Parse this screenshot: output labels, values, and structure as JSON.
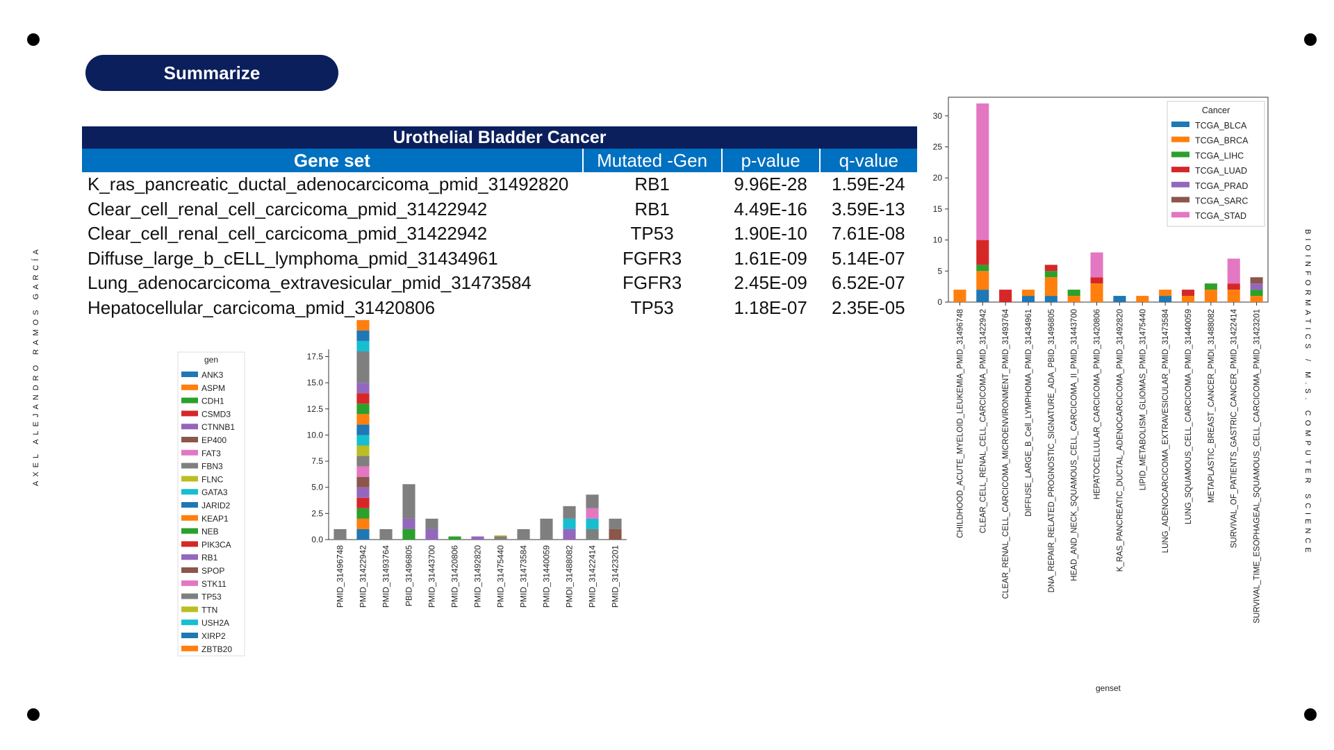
{
  "header": {
    "title": "Summarize"
  },
  "side": {
    "left": "AXEL ALEJANDRO RAMOS GARCÍA",
    "right": "BIOINFORMATICS / M.S. COMPUTER SCIENCE"
  },
  "table": {
    "title": "Urothelial Bladder Cancer",
    "columns": [
      "Gene set",
      "Mutated -Gen",
      "p-value",
      "q-value"
    ],
    "rows": [
      [
        "K_ras_pancreatic_ductal_adenocarcicoma_pmid_31492820",
        "RB1",
        "9.96E-28",
        "1.59E-24"
      ],
      [
        "Clear_cell_renal_cell_carcicoma_pmid_31422942",
        "RB1",
        "4.49E-16",
        "3.59E-13"
      ],
      [
        "Clear_cell_renal_cell_carcicoma_pmid_31422942",
        "TP53",
        "1.90E-10",
        "7.61E-08"
      ],
      [
        "Diffuse_large_b_cELL_lymphoma_pmid_31434961",
        "FGFR3",
        "1.61E-09",
        "5.14E-07"
      ],
      [
        "Lung_adenocarcicoma_extravesicular_pmid_31473584",
        "FGFR3",
        "2.45E-09",
        "6.52E-07"
      ],
      [
        "Hepatocellular_carcicoma_pmid_31420806",
        "TP53",
        "1.18E-07",
        "2.35E-05"
      ]
    ]
  },
  "chart_data": [
    {
      "type": "bar",
      "stacked": true,
      "legend_title": "gen",
      "legend": [
        "ANK3",
        "ASPM",
        "CDH1",
        "CSMD3",
        "CTNNB1",
        "EP400",
        "FAT3",
        "FBN3",
        "FLNC",
        "GATA3",
        "JARID2",
        "KEAP1",
        "NEB",
        "PIK3CA",
        "RB1",
        "SPOP",
        "STK11",
        "TP53",
        "TTN",
        "USH2A",
        "XIRP2",
        "ZBTB20"
      ],
      "colors": [
        "#1f77b4",
        "#ff7f0e",
        "#2ca02c",
        "#d62728",
        "#9467bd",
        "#8c564b",
        "#e377c2",
        "#7f7f7f",
        "#bcbd22",
        "#17becf",
        "#1f77b4",
        "#ff7f0e",
        "#2ca02c",
        "#d62728",
        "#9467bd",
        "#8c564b",
        "#e377c2",
        "#7f7f7f",
        "#bcbd22",
        "#17becf",
        "#1f77b4",
        "#ff7f0e"
      ],
      "categories": [
        "PMID_31496748",
        "PMID_31422942",
        "PMID_31493764",
        "PBID_31496805",
        "PMID_31443700",
        "PMID_31420806",
        "PMID_31492820",
        "PMID_31475440",
        "PMID_31473584",
        "PMID_31440059",
        "PMDI_31488082",
        "PMID_31422414",
        "PMID_31423201"
      ],
      "segments": [
        [
          [
            7,
            1
          ]
        ],
        [
          [
            0,
            1
          ],
          [
            1,
            1
          ],
          [
            2,
            1
          ],
          [
            3,
            1
          ],
          [
            4,
            1
          ],
          [
            5,
            1
          ],
          [
            6,
            1
          ],
          [
            7,
            1
          ],
          [
            8,
            1
          ],
          [
            9,
            1
          ],
          [
            10,
            1
          ],
          [
            11,
            1
          ],
          [
            12,
            1
          ],
          [
            13,
            1
          ],
          [
            14,
            1
          ],
          [
            7,
            3
          ],
          [
            9,
            1
          ],
          [
            10,
            1
          ],
          [
            11,
            1
          ]
        ],
        [
          [
            7,
            1
          ]
        ],
        [
          [
            2,
            1
          ],
          [
            4,
            1
          ],
          [
            7,
            3.3
          ]
        ],
        [
          [
            4,
            1
          ],
          [
            7,
            1
          ]
        ],
        [
          [
            2,
            0.3
          ]
        ],
        [
          [
            4,
            0.3
          ]
        ],
        [
          [
            7,
            0.3
          ],
          [
            8,
            0.1
          ]
        ],
        [
          [
            7,
            1
          ]
        ],
        [
          [
            7,
            2
          ]
        ],
        [
          [
            4,
            1
          ],
          [
            9,
            1
          ],
          [
            7,
            1.2
          ]
        ],
        [
          [
            7,
            1
          ],
          [
            9,
            1
          ],
          [
            6,
            1
          ],
          [
            7,
            1.3
          ]
        ],
        [
          [
            5,
            1
          ],
          [
            7,
            1
          ]
        ]
      ],
      "ylim": [
        0,
        18.2
      ],
      "yticks": [
        0.0,
        2.5,
        5.0,
        7.5,
        10.0,
        12.5,
        15.0,
        17.5
      ]
    },
    {
      "type": "bar",
      "stacked": true,
      "xlabel": "genset",
      "legend_title": "Cancer",
      "legend": [
        "TCGA_BLCA",
        "TCGA_BRCA",
        "TCGA_LIHC",
        "TCGA_LUAD",
        "TCGA_PRAD",
        "TCGA_SARC",
        "TCGA_STAD"
      ],
      "colors": [
        "#1f77b4",
        "#ff7f0e",
        "#2ca02c",
        "#d62728",
        "#9467bd",
        "#8c564b",
        "#e377c2"
      ],
      "categories": [
        "CHILDHOOD_ACUTE_MYELOID_LEUKEMIA_PMID_31496748",
        "CLEAR_CELL_RENAL_CELL_CARCICOMA_PMID_31422942",
        "CLEAR_RENAL_CELL_CARCICOMA_MICROENVIRONMENT_PMID_31493764",
        "DIFFUSE_LARGE_B_Cell_LYMPHOMA_PMID_31434961",
        "DNA_REPAIR_RELATED_PROGNOSTIC_SIGNATURE_ADA_PBID_31496805",
        "HEAD_AND_NECK_SQUAMOUS_CELL_CARCICOMA_II_PMID_31443700",
        "HEPATOCELLULAR_CARCICOMA_PMID_31420806",
        "K_RAS_PANCREATIC_DUCTAL_ADENOCARCICOMA_PMID_31492820",
        "LIPID_METABOLISM_GLIOMAS_PMID_31475440",
        "LUNG_ADENOCARCICOMA_EXTRAVESICULAR_PMID_31473584",
        "LUNG_SQUAMOUS_CELL_CARCICOMA_PMID_31440059",
        "METAPLASTIC_BREAST_CANCER_PMDI_31488082",
        "SURVIVAL_OF_PATIENTS_GASTRIC_CANCER_PMID_31422414",
        "SURVIVAL_TIME_ESOPHAGEAL_SQUAMOUS_CELL_CARCICOMA_PMID_31423201"
      ],
      "series": [
        {
          "name": "TCGA_BLCA",
          "values": [
            0,
            2,
            0,
            1,
            1,
            0,
            0,
            1,
            0,
            1,
            0,
            0,
            0,
            0
          ]
        },
        {
          "name": "TCGA_BRCA",
          "values": [
            2,
            3,
            0,
            1,
            3,
            1,
            3,
            0,
            1,
            1,
            1,
            2,
            2,
            1
          ]
        },
        {
          "name": "TCGA_LIHC",
          "values": [
            0,
            1,
            0,
            0,
            1,
            1,
            0,
            0,
            0,
            0,
            0,
            1,
            0,
            1
          ]
        },
        {
          "name": "TCGA_LUAD",
          "values": [
            0,
            4,
            2,
            0,
            1,
            0,
            1,
            0,
            0,
            0,
            1,
            0,
            1,
            0
          ]
        },
        {
          "name": "TCGA_PRAD",
          "values": [
            0,
            0,
            0,
            0,
            0,
            0,
            0,
            0,
            0,
            0,
            0,
            0,
            0,
            1
          ]
        },
        {
          "name": "TCGA_SARC",
          "values": [
            0,
            0,
            0,
            0,
            0,
            0,
            0,
            0,
            0,
            0,
            0,
            0,
            0,
            1
          ]
        },
        {
          "name": "TCGA_STAD",
          "values": [
            0,
            22,
            0,
            0,
            0,
            0,
            4,
            0,
            0,
            0,
            0,
            0,
            4,
            0
          ]
        }
      ],
      "ylim": [
        0,
        33
      ],
      "yticks": [
        0,
        5,
        10,
        15,
        20,
        25,
        30
      ]
    }
  ]
}
